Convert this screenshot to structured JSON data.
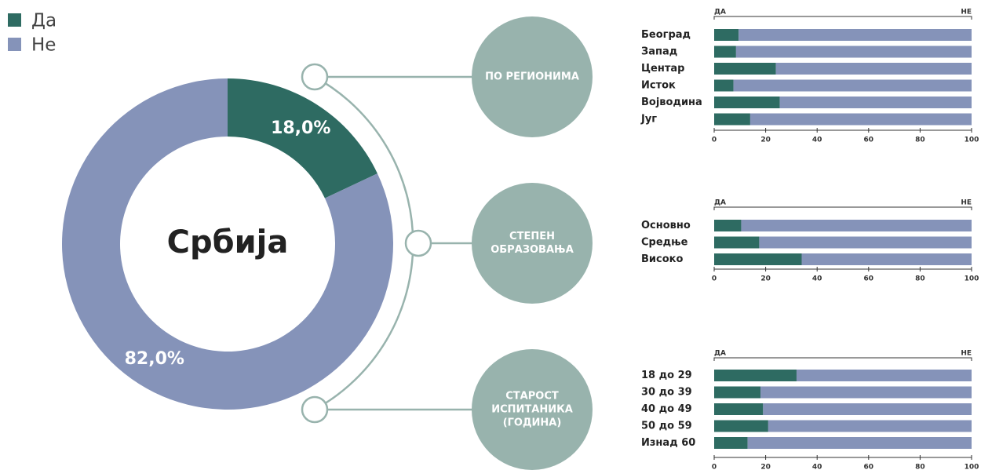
{
  "chart_data": [
    {
      "type": "pie",
      "donut": true,
      "center_label": "Србија",
      "categories": [
        "Да",
        "Не"
      ],
      "values": [
        18,
        82
      ],
      "value_labels": [
        "18,0%",
        "82,0%"
      ],
      "colors": [
        "#2e6b62",
        "#8593b9"
      ],
      "legend": "top-left"
    },
    {
      "type": "bar",
      "orientation": "horizontal",
      "stacked": true,
      "title": "ПО РЕГИОНИМА",
      "categories": [
        "Београд",
        "Запад",
        "Центар",
        "Исток",
        "Војводина",
        "Југ"
      ],
      "series": [
        {
          "name": "ДА",
          "color": "#2e6b62",
          "values": [
            9.5,
            8.5,
            24,
            7.5,
            25.5,
            14
          ]
        },
        {
          "name": "НЕ",
          "color": "#8593b9",
          "values": [
            90.5,
            91.5,
            76,
            92.5,
            74.5,
            86
          ]
        }
      ],
      "xlim": [
        0,
        100
      ],
      "xticks": [
        0,
        20,
        40,
        60,
        80,
        100
      ]
    },
    {
      "type": "bar",
      "orientation": "horizontal",
      "stacked": true,
      "title": "СТЕПЕН ОБРАЗОВАЊА",
      "categories": [
        "Основно",
        "Средње",
        "Високо"
      ],
      "series": [
        {
          "name": "ДА",
          "color": "#2e6b62",
          "values": [
            10.5,
            17.5,
            34
          ]
        },
        {
          "name": "НЕ",
          "color": "#8593b9",
          "values": [
            89.5,
            82.5,
            66
          ]
        }
      ],
      "xlim": [
        0,
        100
      ],
      "xticks": [
        0,
        20,
        40,
        60,
        80,
        100
      ]
    },
    {
      "type": "bar",
      "orientation": "horizontal",
      "stacked": true,
      "title": "СТАРОСТ ИСПИТАНИКА (ГОДИНА)",
      "categories": [
        "18 до 29",
        "30 до 39",
        "40 до 49",
        "50 до 59",
        "Изнад 60"
      ],
      "series": [
        {
          "name": "ДА",
          "color": "#2e6b62",
          "values": [
            32,
            18,
            19,
            21,
            13
          ]
        },
        {
          "name": "НЕ",
          "color": "#8593b9",
          "values": [
            68,
            82,
            81,
            79,
            87
          ]
        }
      ],
      "xlim": [
        0,
        100
      ],
      "xticks": [
        0,
        20,
        40,
        60,
        80,
        100
      ]
    }
  ]
}
